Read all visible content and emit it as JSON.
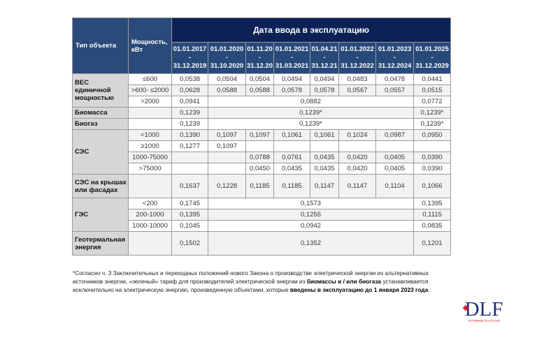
{
  "header": {
    "type_label": "Тип объекта",
    "power_label": "Мощность, кВт",
    "date_group_label": "Дата ввода в эксплуатацию",
    "periods": [
      [
        "01.01.2017",
        "-",
        "31.12.2019"
      ],
      [
        "01.01.2020",
        "-",
        "31.10.2020"
      ],
      [
        "01.11.20",
        "-",
        "31.12.20"
      ],
      [
        "01.01.2021",
        "-",
        "31.03.2021"
      ],
      [
        "01.04.21",
        "-",
        "31.12.21"
      ],
      [
        "01.01.2022",
        "-",
        "31.12.2022"
      ],
      [
        "01.01.2023",
        "-",
        "31.12.2024"
      ],
      [
        "01.01.2025",
        "-",
        "31.12.2029"
      ]
    ]
  },
  "groups": [
    {
      "label": "ВЕС единичной мощностью",
      "rows": [
        {
          "power": "≤600",
          "cells": [
            [
              "0,0538",
              1
            ],
            [
              "0,0504",
              1
            ],
            [
              "0,0504",
              1
            ],
            [
              "0,0494",
              1
            ],
            [
              "0,0494",
              1
            ],
            [
              "0,0483",
              1
            ],
            [
              "0,0478",
              1
            ],
            [
              "0,0441",
              1
            ]
          ]
        },
        {
          "power": ">600- ≤2000",
          "cells": [
            [
              "0,0628",
              1
            ],
            [
              "0,0588",
              1
            ],
            [
              "0,0588",
              1
            ],
            [
              "0,0578",
              1
            ],
            [
              "0,0578",
              1
            ],
            [
              "0,0567",
              1
            ],
            [
              "0,0557",
              1
            ],
            [
              "0,0515",
              1
            ]
          ]
        },
        {
          "power": ">2000",
          "cells": [
            [
              "0,0941",
              1
            ],
            [
              "0,0882",
              6
            ],
            [
              "0,0772",
              1
            ]
          ]
        }
      ]
    },
    {
      "label": "Биомасса",
      "rows": [
        {
          "power": "",
          "cells": [
            [
              "0,1239",
              1
            ],
            [
              "0,1239*",
              6
            ],
            [
              "0,1239*",
              1
            ]
          ]
        }
      ]
    },
    {
      "label": "Биогаз",
      "rows": [
        {
          "power": "",
          "cells": [
            [
              "0,1239",
              1
            ],
            [
              "0,1239*",
              6
            ],
            [
              "0,1239*",
              1
            ]
          ]
        }
      ]
    },
    {
      "label": "СЭС",
      "rows": [
        {
          "power": "<1000",
          "cells": [
            [
              "0,1390",
              1
            ],
            [
              "0,1097",
              1
            ],
            [
              "0,1097",
              1
            ],
            [
              "0,1061",
              1
            ],
            [
              "0,1061",
              1
            ],
            [
              "0,1024",
              1
            ],
            [
              "0,0987",
              1
            ],
            [
              "0,0950",
              1
            ]
          ]
        },
        {
          "power": "≥1000",
          "cells": [
            [
              "0,1277",
              1
            ],
            [
              "0,1097",
              1
            ],
            [
              "",
              1
            ],
            [
              "",
              1
            ],
            [
              "",
              1
            ],
            [
              "",
              1
            ],
            [
              "",
              1
            ],
            [
              "",
              1
            ]
          ]
        },
        {
          "power": "1000-75000",
          "cells": [
            [
              "",
              1
            ],
            [
              "",
              1
            ],
            [
              "0,0788",
              1
            ],
            [
              "0,0761",
              1
            ],
            [
              "0,0435",
              1
            ],
            [
              "0,0420",
              1
            ],
            [
              "0,0405",
              1
            ],
            [
              "0,0390",
              1
            ]
          ]
        },
        {
          "power": ">75000",
          "cells": [
            [
              "",
              1
            ],
            [
              "",
              1
            ],
            [
              "0,0450",
              1
            ],
            [
              "0,0435",
              1
            ],
            [
              "0,0435",
              1
            ],
            [
              "0,0420",
              1
            ],
            [
              "0,0405",
              1
            ],
            [
              "0,0390",
              1
            ]
          ]
        }
      ]
    },
    {
      "label": "СЭС на крышах или фасадах",
      "tall": true,
      "rows": [
        {
          "power": "",
          "cells": [
            [
              "0,1637",
              1
            ],
            [
              "0,1228",
              1
            ],
            [
              "0,1185",
              1
            ],
            [
              "0,1185",
              1
            ],
            [
              "0,1147",
              1
            ],
            [
              "0,1147",
              1
            ],
            [
              "0,1104",
              1
            ],
            [
              "0,1066",
              1
            ]
          ]
        }
      ]
    },
    {
      "label": "ГЭС",
      "rows": [
        {
          "power": "<200",
          "cells": [
            [
              "0,1745",
              1
            ],
            [
              "0,1573",
              6
            ],
            [
              "0,1395",
              1
            ]
          ]
        },
        {
          "power": "200-1000",
          "cells": [
            [
              "0,1395",
              1
            ],
            [
              "0,1255",
              6
            ],
            [
              "0,1115",
              1
            ]
          ]
        },
        {
          "power": "1000-10000",
          "cells": [
            [
              "0,1045",
              1
            ],
            [
              "0,0942",
              6
            ],
            [
              "0,0835",
              1
            ]
          ]
        }
      ]
    },
    {
      "label": "Геотермальная энергия",
      "tall": true,
      "rows": [
        {
          "power": "",
          "cells": [
            [
              "0,1502",
              1
            ],
            [
              "0,1352",
              6
            ],
            [
              "0,1201",
              1
            ]
          ]
        }
      ]
    }
  ],
  "footnote": {
    "part1": "*Согласно ч. 3 Заключительных и переходных положений нового Закона о производстве электрической энергии из альтернативных источников энергии, «зеленый» тариф для производителей электрической энергии из ",
    "bold1": "биомассы и / или биогаза",
    "part2": " устанавливается исключительно на электрическую энергию, произведенную объектами, которые ",
    "bold2": "введены в эксплуатацию до 1 января 2023 года",
    "part3": "."
  },
  "logo": {
    "text": "DLF",
    "tagline": "ATTORNEYS-AT-LAW",
    "color_primary": "#1f2f7a",
    "color_accent": "#d0202f"
  }
}
